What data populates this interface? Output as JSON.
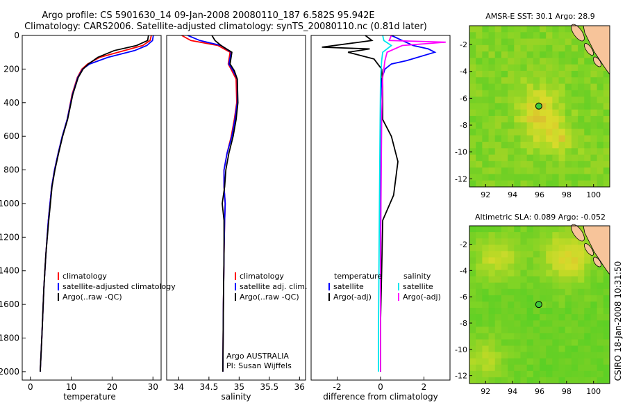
{
  "header": {
    "line1": "Argo profile: CS 5901630_14 09-Jan-2008 20080110_187 6.582S 95.942E",
    "line2": "Climatology: CARS2006. Satellite-adjusted climatology: synTS_20080110.nc (0.81d later)"
  },
  "side_stamp": "CSIRO 18-Jan-2008 10:31:50",
  "colors": {
    "climatology": "#ff0000",
    "satellite": "#0000ff",
    "argo": "#000000",
    "salinity_satellite": "#00e5ee",
    "salinity_argo": "#ff00ff",
    "map_green": "#3cc83c",
    "map_yellow": "#d8e640",
    "map_orange": "#f0a030",
    "land": "#f7c49a"
  },
  "chart_data": [
    {
      "id": "temperature",
      "type": "line",
      "xlabel": "temperature",
      "ylabel": "",
      "xlim": [
        -2,
        32
      ],
      "ylim": [
        2050,
        0
      ],
      "xticks": [
        0,
        10,
        20,
        30
      ],
      "yticks": [
        0,
        200,
        400,
        600,
        800,
        1000,
        1200,
        1400,
        1600,
        1800,
        2000
      ],
      "legend": [
        "climatology",
        "satellite-adjusted climatology",
        "Argo(..raw -QC)"
      ],
      "series": [
        {
          "name": "climatology",
          "color": "#ff0000",
          "x": [
            29.6,
            29.3,
            27.5,
            23.0,
            17.0,
            14.0,
            12.6,
            11.5,
            10.2,
            9.0,
            7.8,
            6.8,
            5.9,
            5.2,
            4.8,
            4.4,
            3.8,
            3.3,
            2.8,
            2.4
          ],
          "y": [
            0,
            30,
            60,
            90,
            130,
            170,
            200,
            250,
            350,
            500,
            600,
            700,
            800,
            900,
            1000,
            1100,
            1300,
            1500,
            1800,
            2000
          ]
        },
        {
          "name": "satellite-adjusted climatology",
          "color": "#0000ff",
          "x": [
            30.1,
            29.9,
            28.5,
            25.5,
            19.0,
            14.5,
            12.8,
            11.6,
            10.3,
            9.0,
            7.8,
            6.8,
            5.9,
            5.2,
            4.8,
            4.4,
            3.8,
            3.3,
            2.8,
            2.4
          ],
          "y": [
            0,
            30,
            60,
            90,
            130,
            170,
            200,
            250,
            350,
            500,
            600,
            700,
            800,
            900,
            1000,
            1100,
            1300,
            1500,
            1800,
            2000
          ]
        },
        {
          "name": "Argo(..raw -QC)",
          "color": "#000000",
          "x": [
            28.9,
            28.7,
            26.0,
            20.5,
            16.5,
            14.2,
            12.9,
            11.7,
            10.4,
            9.1,
            7.9,
            6.9,
            6.0,
            5.3,
            4.9,
            4.5,
            3.8,
            3.3,
            2.8,
            2.4
          ],
          "y": [
            0,
            30,
            60,
            90,
            130,
            170,
            200,
            250,
            350,
            500,
            600,
            700,
            800,
            900,
            1000,
            1100,
            1300,
            1500,
            1800,
            2000
          ]
        }
      ]
    },
    {
      "id": "salinity",
      "type": "line",
      "xlabel": "salinity",
      "xlim": [
        33.8,
        36.1
      ],
      "ylim": [
        2050,
        0
      ],
      "xticks": [
        34,
        34.5,
        35,
        35.5,
        36
      ],
      "legend": [
        "climatology",
        "satellite adj. clim.",
        "Argo(..raw -QC)"
      ],
      "annotation": [
        "Argo AUSTRALIA",
        "PI: Susan Wijffels"
      ],
      "series": [
        {
          "name": "climatology",
          "color": "#ff0000",
          "x": [
            34.05,
            34.2,
            34.65,
            34.85,
            34.82,
            34.88,
            34.95,
            34.96,
            34.92,
            34.87,
            34.8,
            34.75,
            34.75,
            34.77,
            34.76,
            34.75,
            34.74,
            34.73
          ],
          "y": [
            0,
            30,
            60,
            100,
            170,
            210,
            260,
            400,
            500,
            600,
            700,
            800,
            900,
            1000,
            1100,
            1300,
            1600,
            2000
          ]
        },
        {
          "name": "satellite adj. clim.",
          "color": "#0000ff",
          "x": [
            34.15,
            34.35,
            34.7,
            34.87,
            34.83,
            34.9,
            34.97,
            34.97,
            34.93,
            34.88,
            34.8,
            34.75,
            34.75,
            34.77,
            34.76,
            34.75,
            34.74,
            34.73
          ],
          "y": [
            0,
            30,
            60,
            100,
            170,
            210,
            260,
            400,
            500,
            600,
            700,
            800,
            900,
            1000,
            1100,
            1300,
            1600,
            2000
          ]
        },
        {
          "name": "Argo(..raw -QC)",
          "color": "#000000",
          "x": [
            34.55,
            34.6,
            34.7,
            34.88,
            34.85,
            34.92,
            34.97,
            34.98,
            34.95,
            34.9,
            34.83,
            34.78,
            34.76,
            34.72,
            34.75,
            34.75,
            34.74,
            34.73
          ],
          "y": [
            0,
            30,
            60,
            100,
            170,
            210,
            260,
            400,
            500,
            600,
            700,
            800,
            900,
            1000,
            1100,
            1300,
            1600,
            2000
          ]
        }
      ]
    },
    {
      "id": "difference",
      "type": "line",
      "xlabel": "difference from climatology",
      "xlim": [
        -3.2,
        3.2
      ],
      "ylim": [
        2050,
        0
      ],
      "xticks": [
        -2,
        0,
        2
      ],
      "legend_temperature_title": "temperature",
      "legend_salinity_title": "salinity",
      "legend": [
        "satellite",
        "Argo(-adj)",
        "satellite",
        "Argo(-adj)"
      ],
      "series": [
        {
          "name": "temperature satellite",
          "color": "#0000ff",
          "x": [
            0.5,
            1.0,
            1.5,
            2.2,
            2.5,
            1.2,
            0.5,
            0.2,
            0.05,
            0.0,
            0.0,
            0.0,
            0.0,
            0.0
          ],
          "y": [
            0,
            30,
            60,
            80,
            100,
            150,
            170,
            200,
            260,
            400,
            800,
            1200,
            1600,
            2000
          ]
        },
        {
          "name": "temperature Argo(-adj)",
          "color": "#000000",
          "x": [
            -0.7,
            -0.4,
            -2.7,
            -0.5,
            -1.5,
            -0.3,
            0.05,
            0.1,
            0.1,
            0.5,
            0.8,
            0.6,
            0.1,
            0.05,
            0.0,
            0.0
          ],
          "y": [
            0,
            30,
            70,
            80,
            100,
            140,
            200,
            300,
            500,
            600,
            750,
            950,
            1100,
            1400,
            1700,
            2000
          ]
        },
        {
          "name": "salinity satellite",
          "color": "#00e5ee",
          "x": [
            0.1,
            0.15,
            0.5,
            0.1,
            0.05,
            0.0,
            -0.02,
            -0.05,
            -0.08,
            -0.1,
            -0.1
          ],
          "y": [
            0,
            30,
            60,
            100,
            150,
            250,
            500,
            1000,
            1500,
            1800,
            2000
          ]
        },
        {
          "name": "salinity Argo(-adj)",
          "color": "#ff00ff",
          "x": [
            0.5,
            0.4,
            3.0,
            1.0,
            0.3,
            0.2,
            0.1,
            0.05,
            0.02,
            0.0,
            0.0
          ],
          "y": [
            0,
            30,
            40,
            60,
            100,
            150,
            250,
            500,
            1000,
            1500,
            2000
          ]
        }
      ]
    },
    {
      "id": "sst_map",
      "type": "heatmap",
      "title": "AMSR-E SST: 30.1 Argo: 28.9",
      "xticks": [
        92,
        94,
        96,
        98,
        100
      ],
      "yticks": [
        -2,
        -4,
        -6,
        -8,
        -10,
        -12
      ],
      "xlim": [
        90.8,
        101.2
      ],
      "ylim": [
        -12.6,
        -0.6
      ],
      "marker": {
        "lon": 95.942,
        "lat": -6.582
      }
    },
    {
      "id": "sla_map",
      "type": "heatmap",
      "title": "Altimetric SLA: 0.089 Argo: -0.052",
      "xticks": [
        92,
        94,
        96,
        98,
        100
      ],
      "yticks": [
        -2,
        -4,
        -6,
        -8,
        -10,
        -12
      ],
      "xlim": [
        90.8,
        101.2
      ],
      "ylim": [
        -12.6,
        -0.6
      ],
      "marker": {
        "lon": 95.942,
        "lat": -6.582
      }
    }
  ]
}
